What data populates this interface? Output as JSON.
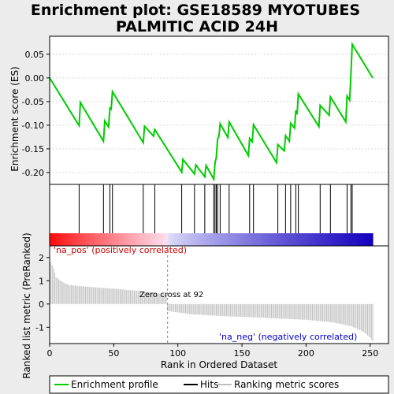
{
  "title_line1": "Enrichment plot: GSE18589 MYOTUBES",
  "title_line2": "PALMITIC ACID 24H",
  "chart_data": {
    "type": "line",
    "es_panel": {
      "ylabel": "Enrichment score (ES)",
      "ylim": [
        -0.225,
        0.088
      ],
      "yticks": [
        "0.05",
        "0.00",
        "-0.05",
        "-0.10",
        "-0.15",
        "-0.20"
      ],
      "ytick_values": [
        0.05,
        0.0,
        -0.05,
        -0.1,
        -0.15,
        -0.2
      ],
      "curve": [
        [
          0,
          0.0
        ],
        [
          23,
          -0.101
        ],
        [
          24,
          -0.052
        ],
        [
          42,
          -0.134
        ],
        [
          43,
          -0.091
        ],
        [
          46,
          -0.104
        ],
        [
          47,
          -0.064
        ],
        [
          48,
          -0.066
        ],
        [
          49,
          -0.029
        ],
        [
          73,
          -0.137
        ],
        [
          74,
          -0.102
        ],
        [
          81,
          -0.123
        ],
        [
          82,
          -0.109
        ],
        [
          103,
          -0.199
        ],
        [
          104,
          -0.172
        ],
        [
          113,
          -0.203
        ],
        [
          114,
          -0.184
        ],
        [
          121,
          -0.209
        ],
        [
          122,
          -0.185
        ],
        [
          128,
          -0.214
        ],
        [
          129,
          -0.179
        ],
        [
          130,
          -0.168
        ],
        [
          131,
          -0.129
        ],
        [
          132,
          -0.124
        ],
        [
          133,
          -0.097
        ],
        [
          139,
          -0.126
        ],
        [
          140,
          -0.093
        ],
        [
          155,
          -0.164
        ],
        [
          156,
          -0.128
        ],
        [
          158,
          -0.135
        ],
        [
          159,
          -0.099
        ],
        [
          177,
          -0.179
        ],
        [
          178,
          -0.141
        ],
        [
          183,
          -0.154
        ],
        [
          184,
          -0.122
        ],
        [
          187,
          -0.134
        ],
        [
          188,
          -0.096
        ],
        [
          191,
          -0.106
        ],
        [
          192,
          -0.069
        ],
        [
          193,
          -0.077
        ],
        [
          194,
          -0.034
        ],
        [
          210,
          -0.103
        ],
        [
          211,
          -0.058
        ],
        [
          218,
          -0.079
        ],
        [
          219,
          -0.04
        ],
        [
          231,
          -0.093
        ],
        [
          232,
          -0.038
        ],
        [
          234,
          -0.047
        ],
        [
          235,
          0.006
        ],
        [
          236,
          0.071
        ],
        [
          252,
          0.0
        ]
      ]
    },
    "hits": [
      23,
      42,
      47,
      49,
      73,
      82,
      103,
      113,
      121,
      128,
      129,
      130,
      131,
      133,
      140,
      156,
      159,
      178,
      184,
      188,
      192,
      194,
      211,
      219,
      232,
      235,
      236
    ],
    "ranked_panel": {
      "ylabel": "Ranked list metric (PreRanked)",
      "ylim": [
        -1.7,
        2.5
      ],
      "yticks": [
        "2",
        "1",
        "0",
        "-1"
      ],
      "ytick_values": [
        2,
        1,
        0,
        -1
      ],
      "xlabel": "Rank in Ordered Dataset",
      "xlim": [
        0,
        252
      ],
      "xticks": [
        "0",
        "50",
        "100",
        "150",
        "200",
        "250"
      ],
      "xtick_values": [
        0,
        50,
        100,
        150,
        200,
        250
      ],
      "metric_profile": [
        [
          0,
          2.3
        ],
        [
          1,
          1.8
        ],
        [
          3,
          1.55
        ],
        [
          5,
          1.15
        ],
        [
          10,
          0.95
        ],
        [
          15,
          0.82
        ],
        [
          30,
          0.74
        ],
        [
          50,
          0.66
        ],
        [
          70,
          0.56
        ],
        [
          85,
          0.46
        ],
        [
          91,
          0.4
        ],
        [
          92,
          -0.3
        ],
        [
          110,
          -0.44
        ],
        [
          140,
          -0.53
        ],
        [
          170,
          -0.6
        ],
        [
          200,
          -0.68
        ],
        [
          220,
          -0.78
        ],
        [
          235,
          -0.95
        ],
        [
          245,
          -1.2
        ],
        [
          250,
          -1.45
        ],
        [
          252,
          -1.6
        ]
      ],
      "pos_label": "'na_pos' (positively correlated)",
      "neg_label": "'na_neg' (negatively correlated)",
      "zero_cross_label": "Zero cross at 92",
      "zero_cross": 92
    },
    "legend": {
      "placement": "bottom",
      "items": [
        {
          "label": "Enrichment profile",
          "color": "#00cc00"
        },
        {
          "label": "Hits",
          "color": "#000000"
        },
        {
          "label": "Ranking metric scores",
          "color": "#c0c0c0"
        }
      ]
    },
    "colors": {
      "es_line": "#00cc00",
      "hit_line": "#000000",
      "metric_bar": "#c0c0c0",
      "heat_red": "#ff0000",
      "heat_blue": "#0000cc"
    }
  }
}
